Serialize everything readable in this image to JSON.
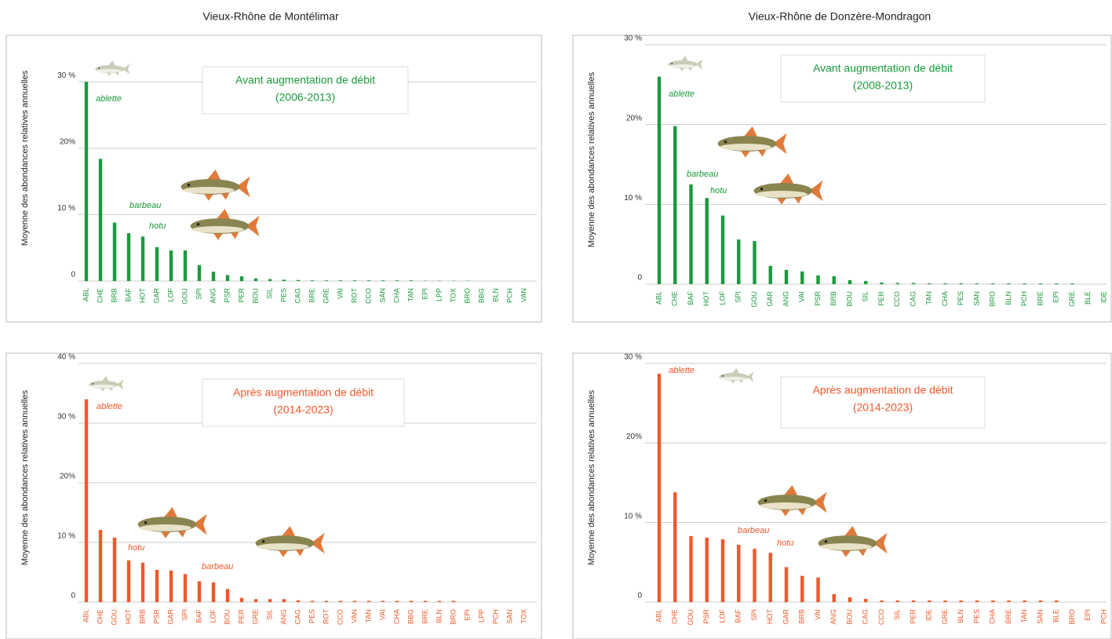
{
  "chart_data": [
    {
      "type": "bar",
      "title": "Vieux-Rhône de Montélimar",
      "color": "#1a9a3c",
      "y_label": "Moyenne des abondances relatives annuelles",
      "legend_box": [
        "Avant augmentation de débit",
        "(2006-2013)"
      ],
      "annotations": [
        "ablette",
        "barbeau",
        "hotu"
      ],
      "categories": [
        "ABL",
        "CHE",
        "BRB",
        "BAF",
        "HOT",
        "GAR",
        "LOF",
        "GOU",
        "SPI",
        "ANG",
        "PSR",
        "PER",
        "BOU",
        "SIL",
        "PES",
        "CAG",
        "BRE",
        "GRE",
        "VAI",
        "ROT",
        "CCO",
        "SAN",
        "CHA",
        "TAN",
        "EPI",
        "LPP",
        "TOX",
        "BRO",
        "BBG",
        "BLN",
        "PCH",
        "VAN"
      ],
      "values": [
        30,
        18.4,
        8.8,
        7.2,
        6.7,
        5.1,
        4.6,
        4.6,
        2.4,
        1.4,
        0.9,
        0.7,
        0.4,
        0.3,
        0.2,
        0.15,
        0.1,
        0.1,
        0.1,
        0.1,
        0.1,
        0.1,
        0.1,
        0.1,
        0.05,
        0.05,
        0.05,
        0.05,
        0,
        0,
        0,
        0
      ],
      "ylim": [
        0,
        35
      ],
      "yticks": [
        0,
        {
          "value": 10,
          "label": "10 %"
        },
        {
          "value": 20,
          "label": "20%"
        },
        {
          "value": 30,
          "label": "30 %"
        }
      ],
      "grid": true
    },
    {
      "type": "bar",
      "title": "Vieux-Rhône de Donzère-Mondragon",
      "color": "#1a9a3c",
      "y_label": "Moyenne des abondances relatives annuelles",
      "legend_box": [
        "Avant augmentation de débit",
        "(2008-2013)"
      ],
      "annotations": [
        "ablette",
        "barbeau",
        "hotu"
      ],
      "categories": [
        "ABL",
        "CHE",
        "BAF",
        "HOT",
        "LOF",
        "SPI",
        "GOU",
        "GAR",
        "ANG",
        "VAI",
        "PSR",
        "BRB",
        "BOU",
        "SIL",
        "PER",
        "CCO",
        "CAG",
        "TAN",
        "CHA",
        "PES",
        "SAN",
        "BRO",
        "BLN",
        "PCH",
        "BRE",
        "EPI",
        "GRE",
        "BLE",
        "IDE"
      ],
      "values": [
        26,
        19.8,
        12.5,
        10.8,
        8.6,
        5.6,
        5.4,
        2.3,
        1.8,
        1.6,
        1.1,
        1.0,
        0.5,
        0.4,
        0.2,
        0.15,
        0.15,
        0.1,
        0.1,
        0.1,
        0.1,
        0.1,
        0.1,
        0.1,
        0.1,
        0.1,
        0.1,
        0,
        0
      ],
      "ylim": [
        0,
        30
      ],
      "yticks": [
        0,
        {
          "value": 10,
          "label": "10 %"
        },
        {
          "value": 20,
          "label": "20%"
        },
        {
          "value": 30,
          "label": "30 %"
        }
      ],
      "grid": true
    },
    {
      "type": "bar",
      "color": "#f0582a",
      "y_label": "Moyenne des abondances relatives annuelles",
      "legend_box": [
        "Après augmentation de débit",
        "(2014-2023)"
      ],
      "annotations": [
        "ablette",
        "hotu",
        "barbeau"
      ],
      "categories": [
        "ABL",
        "CHE",
        "GOU",
        "HOT",
        "BRB",
        "PSR",
        "GAR",
        "SPI",
        "BAF",
        "LOF",
        "BOU",
        "PER",
        "GRE",
        "SIL",
        "ANG",
        "CAG",
        "PES",
        "ROT",
        "CCO",
        "VAN",
        "TAN",
        "VAI",
        "CHA",
        "BBG",
        "BRE",
        "BLN",
        "BRO",
        "EPI",
        "LPP",
        "PCH",
        "SAN",
        "TOX"
      ],
      "values": [
        34,
        12.1,
        10.8,
        7.0,
        6.6,
        5.4,
        5.3,
        4.7,
        3.5,
        3.3,
        2.2,
        0.7,
        0.5,
        0.5,
        0.5,
        0.3,
        0.2,
        0.2,
        0.2,
        0.2,
        0.2,
        0.2,
        0.2,
        0.2,
        0.2,
        0.2,
        0.2,
        0,
        0,
        0,
        0,
        0
      ],
      "ylim": [
        0,
        40
      ],
      "yticks": [
        0,
        {
          "value": 10,
          "label": "10 %"
        },
        {
          "value": 20,
          "label": "20%"
        },
        {
          "value": 30,
          "label": "30 %"
        },
        {
          "value": 40,
          "label": "40 %"
        }
      ],
      "grid": true
    },
    {
      "type": "bar",
      "color": "#f0582a",
      "y_label": "Moyenne des abondances relatives annuelles",
      "legend_box": [
        "Après augmentation de débit",
        "(2014-2023)"
      ],
      "annotations": [
        "ablette",
        "barbeau",
        "hotu"
      ],
      "categories": [
        "ABL",
        "CHE",
        "GOU",
        "PSR",
        "LOF",
        "BAF",
        "SPI",
        "HOT",
        "GAR",
        "BRB",
        "VAI",
        "ANG",
        "BOU",
        "CAG",
        "CCO",
        "SIL",
        "PER",
        "IDE",
        "GRE",
        "BLN",
        "PES",
        "CHA",
        "BRE",
        "TAN",
        "SAN",
        "BLE",
        "BRO",
        "EPI",
        "PCH"
      ],
      "values": [
        28.7,
        13.8,
        8.3,
        8.1,
        7.9,
        7.2,
        6.7,
        6.2,
        4.4,
        3.3,
        3.1,
        1.0,
        0.6,
        0.4,
        0.2,
        0.2,
        0.2,
        0.2,
        0.2,
        0.2,
        0.2,
        0.2,
        0.2,
        0.2,
        0.2,
        0.2,
        0,
        0,
        0
      ],
      "ylim": [
        0,
        30
      ],
      "yticks": [
        0,
        {
          "value": 10,
          "label": "10 %"
        },
        {
          "value": 20,
          "label": "20%"
        },
        {
          "value": 30,
          "label": "30 %"
        }
      ],
      "grid": true
    }
  ]
}
